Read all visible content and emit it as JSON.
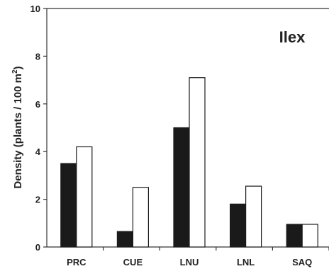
{
  "chart_data": {
    "type": "bar",
    "title": "Ilex",
    "ylabel_main": "Density (plants / 100 m",
    "ylabel_sup": "2",
    "ylabel_close": ")",
    "xlabel": "",
    "categories": [
      "PRC",
      "CUE",
      "LNU",
      "LNL",
      "SAQ"
    ],
    "series": [
      {
        "values": [
          3.5,
          0.65,
          5.0,
          1.8,
          0.95
        ],
        "color": "#1a1a1a"
      },
      {
        "values": [
          4.2,
          2.5,
          7.1,
          2.55,
          0.95
        ],
        "color": "#ffffff"
      }
    ],
    "ylim": [
      0,
      10
    ],
    "yticks": [
      "0",
      "2",
      "4",
      "6",
      "8",
      "10"
    ],
    "grid": false,
    "legend": "none"
  }
}
